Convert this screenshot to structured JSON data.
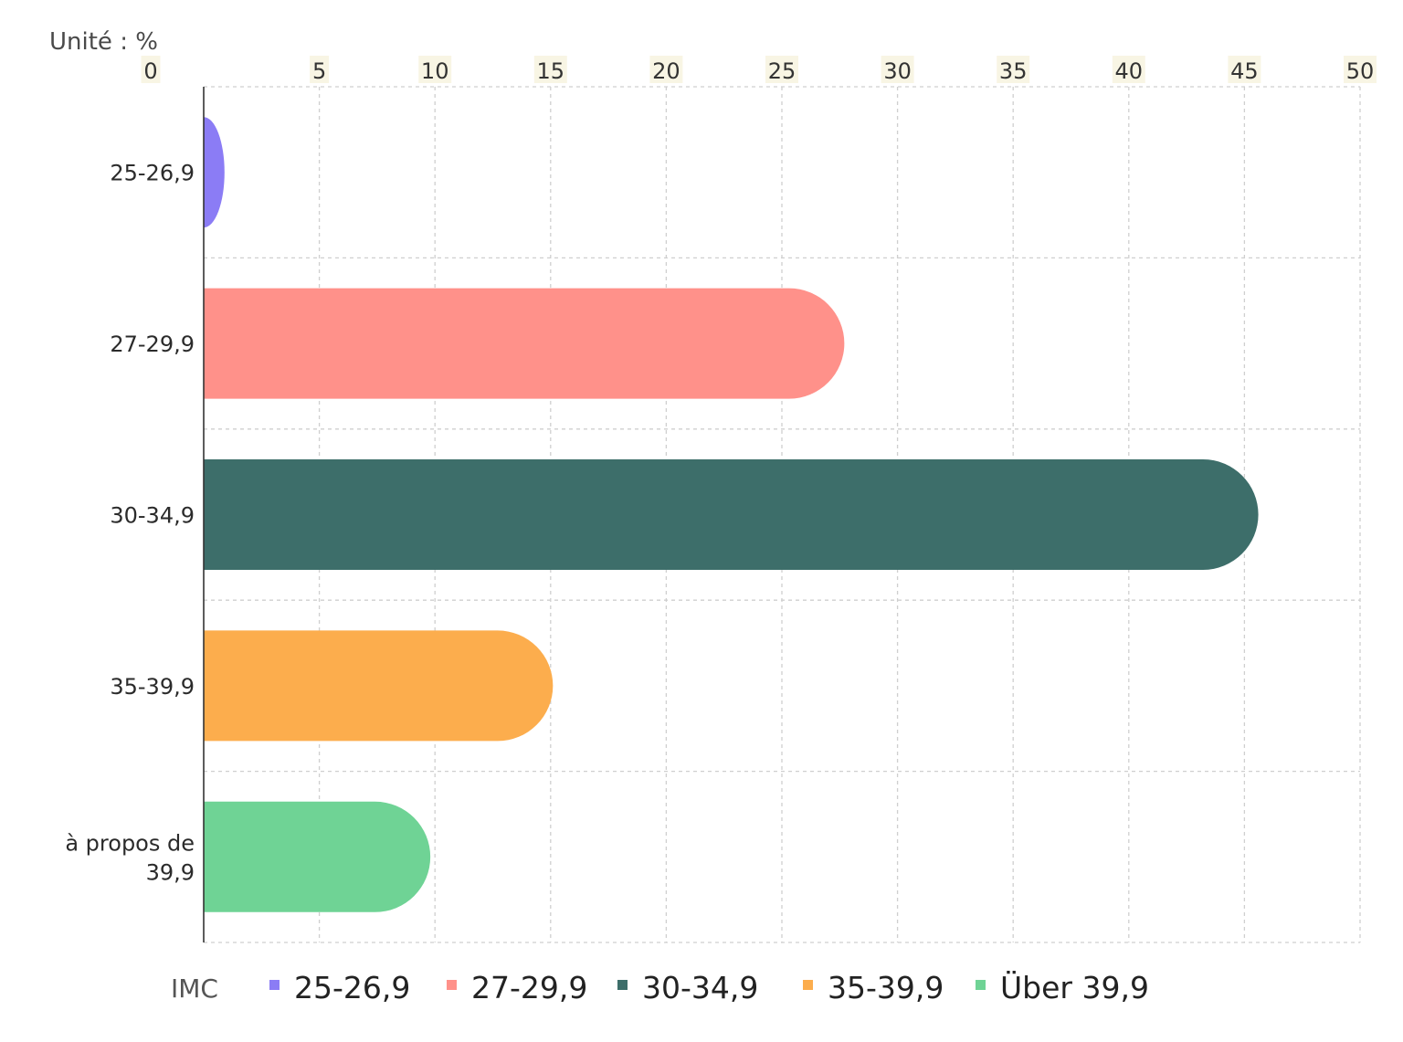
{
  "chart_data": {
    "type": "bar",
    "orientation": "horizontal",
    "unit_label": "Unité : %",
    "categories": [
      [
        "25-26,9"
      ],
      [
        "27-29,9"
      ],
      [
        "30-34,9"
      ],
      [
        "35-39,9"
      ],
      [
        "à propos de",
        "39,9"
      ]
    ],
    "values": [
      0.9,
      27.7,
      45.6,
      15.1,
      9.8
    ],
    "colors": [
      "#8b7cf5",
      "#ff918a",
      "#3d6e6a",
      "#fcad4d",
      "#6fd395"
    ],
    "x_ticks": [
      "0",
      "5",
      "10",
      "15",
      "20",
      "25",
      "30",
      "35",
      "40",
      "45",
      "50"
    ],
    "xlim": [
      0,
      50
    ],
    "x_axis_position": "top",
    "grid": true,
    "legend": {
      "title": "IMC",
      "position": "bottom",
      "items": [
        "25-26,9",
        "27-29,9",
        "30-34,9",
        "35-39,9",
        "Über 39,9"
      ]
    }
  }
}
